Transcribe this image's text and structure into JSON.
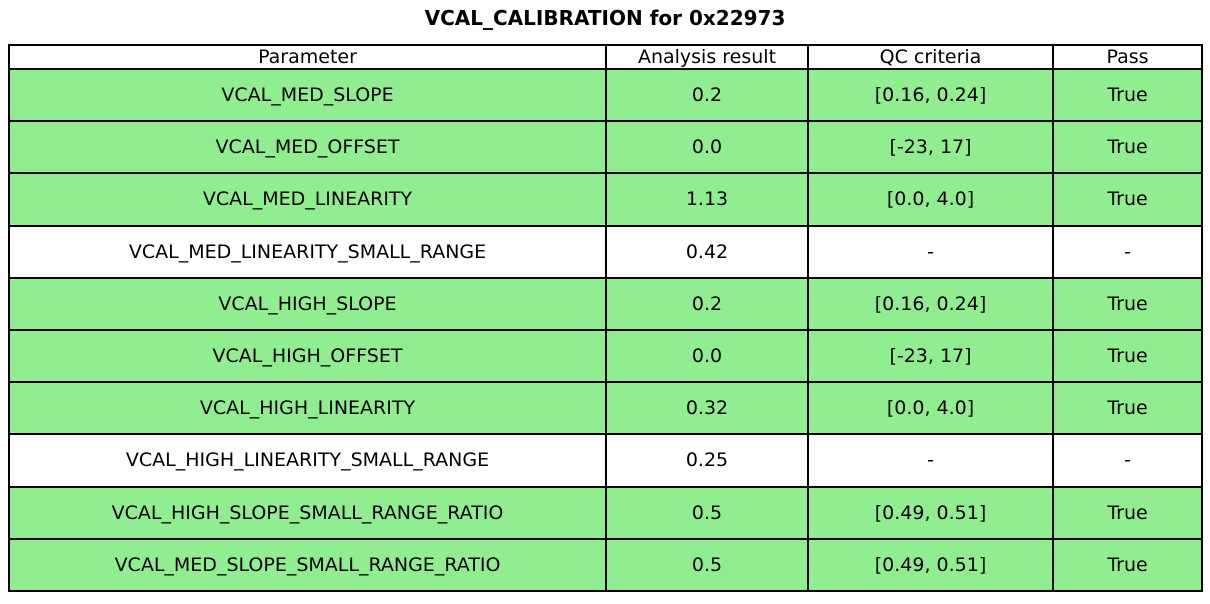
{
  "title": "VCAL_CALIBRATION for 0x22973",
  "table": {
    "columns": [
      "Parameter",
      "Analysis result",
      "QC criteria",
      "Pass"
    ],
    "rows": [
      {
        "parameter": "VCAL_MED_SLOPE",
        "result": "0.2",
        "criteria": "[0.16, 0.24]",
        "pass": "True",
        "highlight": true
      },
      {
        "parameter": "VCAL_MED_OFFSET",
        "result": "0.0",
        "criteria": "[-23, 17]",
        "pass": "True",
        "highlight": true
      },
      {
        "parameter": "VCAL_MED_LINEARITY",
        "result": "1.13",
        "criteria": "[0.0, 4.0]",
        "pass": "True",
        "highlight": true
      },
      {
        "parameter": "VCAL_MED_LINEARITY_SMALL_RANGE",
        "result": "0.42",
        "criteria": "-",
        "pass": "-",
        "highlight": false
      },
      {
        "parameter": "VCAL_HIGH_SLOPE",
        "result": "0.2",
        "criteria": "[0.16, 0.24]",
        "pass": "True",
        "highlight": true
      },
      {
        "parameter": "VCAL_HIGH_OFFSET",
        "result": "0.0",
        "criteria": "[-23, 17]",
        "pass": "True",
        "highlight": true
      },
      {
        "parameter": "VCAL_HIGH_LINEARITY",
        "result": "0.32",
        "criteria": "[0.0, 4.0]",
        "pass": "True",
        "highlight": true
      },
      {
        "parameter": "VCAL_HIGH_LINEARITY_SMALL_RANGE",
        "result": "0.25",
        "criteria": "-",
        "pass": "-",
        "highlight": false
      },
      {
        "parameter": "VCAL_HIGH_SLOPE_SMALL_RANGE_RATIO",
        "result": "0.5",
        "criteria": "[0.49, 0.51]",
        "pass": "True",
        "highlight": true
      },
      {
        "parameter": "VCAL_MED_SLOPE_SMALL_RANGE_RATIO",
        "result": "0.5",
        "criteria": "[0.49, 0.51]",
        "pass": "True",
        "highlight": true
      }
    ]
  },
  "colors": {
    "pass_row_background": "#90ee90",
    "neutral_row_background": "#ffffff",
    "border": "#000000",
    "text": "#000000"
  }
}
